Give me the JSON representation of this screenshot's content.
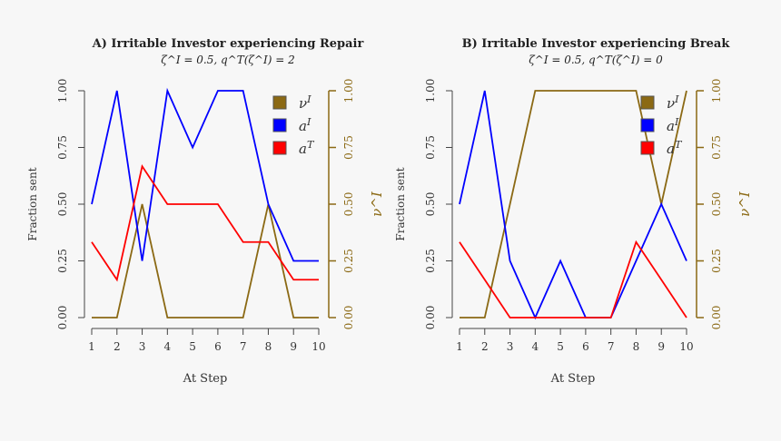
{
  "colors": {
    "nu": "#8B6914",
    "aI": "#0000FF",
    "aT": "#FF0000",
    "axis": "#333333",
    "right_axis": "#8B6914"
  },
  "chart_data": [
    {
      "type": "line",
      "title": "A) Irritable Investor experiencing Repair",
      "subtitle": "ζ^I = 0.5, q^T(ζ^I) = 2",
      "xlabel": "At Step",
      "ylabel": "Fraction sent",
      "y2label": "ν^I",
      "x": [
        1,
        2,
        3,
        4,
        5,
        6,
        7,
        8,
        9,
        10
      ],
      "ylim": [
        0,
        1
      ],
      "y2lim": [
        0,
        1
      ],
      "yticks": [
        "0.00",
        "0.25",
        "0.50",
        "0.75",
        "1.00"
      ],
      "legend_position": "top-right",
      "series": [
        {
          "name": "ν^I",
          "axis": "right",
          "color": "#8B6914",
          "values": [
            0,
            0,
            0.5,
            0,
            0,
            0,
            0,
            0.5,
            0,
            0
          ]
        },
        {
          "name": "a^I",
          "axis": "left",
          "color": "#0000FF",
          "values": [
            0.5,
            1,
            0.25,
            1,
            0.75,
            1,
            1,
            0.5,
            0.25,
            0.25
          ]
        },
        {
          "name": "a^T",
          "axis": "left",
          "color": "#FF0000",
          "values": [
            0.333,
            0.167,
            0.667,
            0.5,
            0.5,
            0.5,
            0.333,
            0.333,
            0.167,
            0.167
          ]
        }
      ]
    },
    {
      "type": "line",
      "title": "B) Irritable Investor experiencing Break",
      "subtitle": "ζ^I = 0.5, q^T(ζ^I) = 0",
      "xlabel": "At Step",
      "ylabel": "Fraction sent",
      "y2label": "ν^I",
      "x": [
        1,
        2,
        3,
        4,
        5,
        6,
        7,
        8,
        9,
        10
      ],
      "ylim": [
        0,
        1
      ],
      "y2lim": [
        0,
        1
      ],
      "yticks": [
        "0.00",
        "0.25",
        "0.50",
        "0.75",
        "1.00"
      ],
      "legend_position": "top-right",
      "series": [
        {
          "name": "ν^I",
          "axis": "right",
          "color": "#8B6914",
          "values": [
            0,
            0,
            0.5,
            1,
            1,
            1,
            1,
            1,
            0.5,
            1
          ]
        },
        {
          "name": "a^I",
          "axis": "left",
          "color": "#0000FF",
          "values": [
            0.5,
            1,
            0.25,
            0,
            0.25,
            0,
            0,
            0.25,
            0.5,
            0.25
          ]
        },
        {
          "name": "a^T",
          "axis": "left",
          "color": "#FF0000",
          "values": [
            0.333,
            0.167,
            0,
            0,
            0,
            0,
            0,
            0.333,
            0.167,
            0
          ]
        }
      ]
    }
  ]
}
